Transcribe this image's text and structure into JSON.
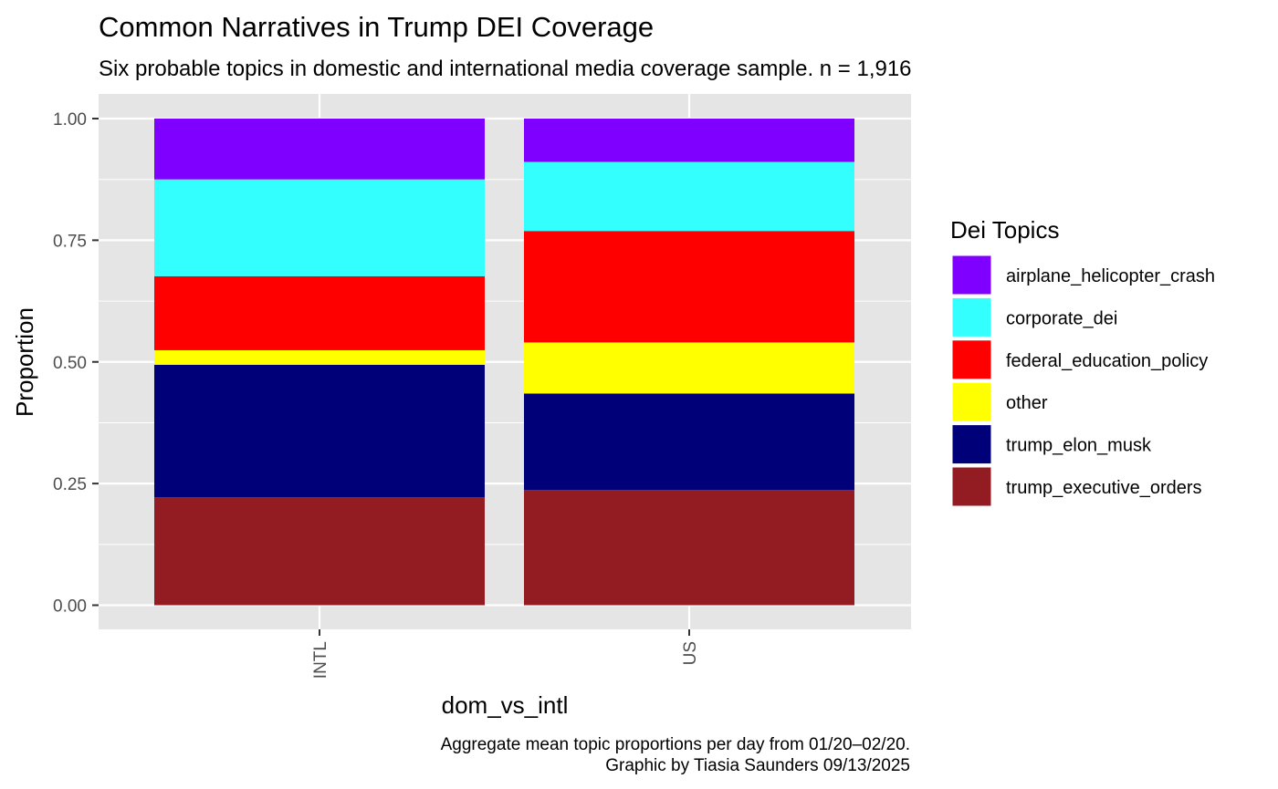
{
  "chart_data": {
    "type": "bar",
    "stacked": true,
    "title": "Common Narratives in Trump DEI Coverage",
    "subtitle": "Six probable topics in domestic and international media coverage sample. n = 1,916",
    "xlabel": "dom_vs_intl",
    "ylabel": "Proportion",
    "ylim": [
      0,
      1
    ],
    "y_ticks": [
      "0.00",
      "0.25",
      "0.50",
      "0.75",
      "1.00"
    ],
    "y_tick_values": [
      0,
      0.25,
      0.5,
      0.75,
      1.0
    ],
    "categories": [
      "INTL",
      "US"
    ],
    "legend_title": "Dei Topics",
    "legend_position": "right",
    "grid": true,
    "series": [
      {
        "name": "trump_executive_orders",
        "color": "#921C22",
        "values": [
          0.222,
          0.237
        ]
      },
      {
        "name": "trump_elon_musk",
        "color": "#000078",
        "values": [
          0.272,
          0.198
        ]
      },
      {
        "name": "other",
        "color": "#FFFF00",
        "values": [
          0.03,
          0.105
        ]
      },
      {
        "name": "federal_education_policy",
        "color": "#FF0000",
        "values": [
          0.152,
          0.229
        ]
      },
      {
        "name": "corporate_dei",
        "color": "#33FFFF",
        "values": [
          0.199,
          0.142
        ]
      },
      {
        "name": "airplane_helicopter_crash",
        "color": "#8000FF",
        "values": [
          0.125,
          0.089
        ]
      }
    ],
    "legend_order": [
      "airplane_helicopter_crash",
      "corporate_dei",
      "federal_education_policy",
      "other",
      "trump_elon_musk",
      "trump_executive_orders"
    ],
    "caption_lines": [
      "Aggregate mean topic proportions per day from 01/20–02/20.",
      "Graphic by Tiasia Saunders  09/13/2025"
    ]
  },
  "colors": {
    "panel_background": "#E5E5E5",
    "grid_major": "#FFFFFF",
    "tick_text": "#4D4D4D"
  }
}
